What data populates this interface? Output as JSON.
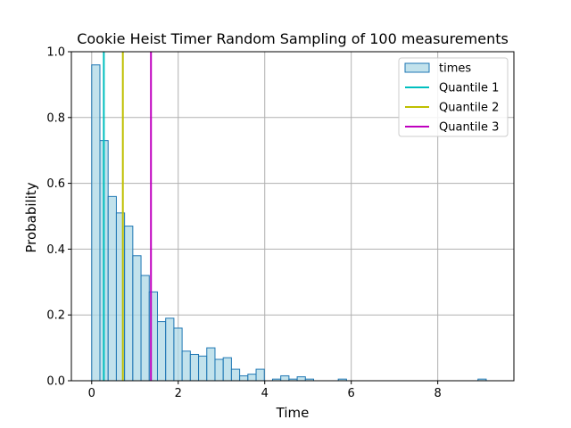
{
  "chart_data": {
    "type": "histogram",
    "title": "Cookie Heist Timer Random Sampling of 100 measurements",
    "xlabel": "Time",
    "ylabel": "Probability",
    "xlim": [
      -0.47,
      9.76
    ],
    "ylim": [
      0,
      1.0
    ],
    "xticks": [
      "0",
      "2",
      "4",
      "6",
      "8"
    ],
    "yticks": [
      "0.0",
      "0.2",
      "0.4",
      "0.6",
      "0.8",
      "1.0"
    ],
    "grid": true,
    "legend_position": "top-right",
    "bin_start": 0,
    "bin_width": 0.19,
    "series": [
      {
        "name": "times",
        "kind": "bars",
        "color": "#add8e6",
        "edge_color": "#1f77b4",
        "values": [
          0.96,
          0.73,
          0.56,
          0.51,
          0.47,
          0.38,
          0.32,
          0.27,
          0.18,
          0.19,
          0.16,
          0.09,
          0.08,
          0.075,
          0.1,
          0.065,
          0.07,
          0.035,
          0.015,
          0.02,
          0.035,
          0,
          0.005,
          0.015,
          0.005,
          0.012,
          0.005,
          0,
          0,
          0,
          0.005,
          0,
          0,
          0,
          0,
          0,
          0,
          0,
          0,
          0,
          0,
          0,
          0,
          0,
          0,
          0,
          0,
          0.005
        ]
      },
      {
        "name": "Quantile 1",
        "kind": "vline",
        "x": 0.28,
        "color": "#00bfbf"
      },
      {
        "name": "Quantile 2",
        "kind": "vline",
        "x": 0.72,
        "color": "#bfbf00"
      },
      {
        "name": "Quantile 3",
        "kind": "vline",
        "x": 1.37,
        "color": "#bf00bf"
      }
    ]
  }
}
